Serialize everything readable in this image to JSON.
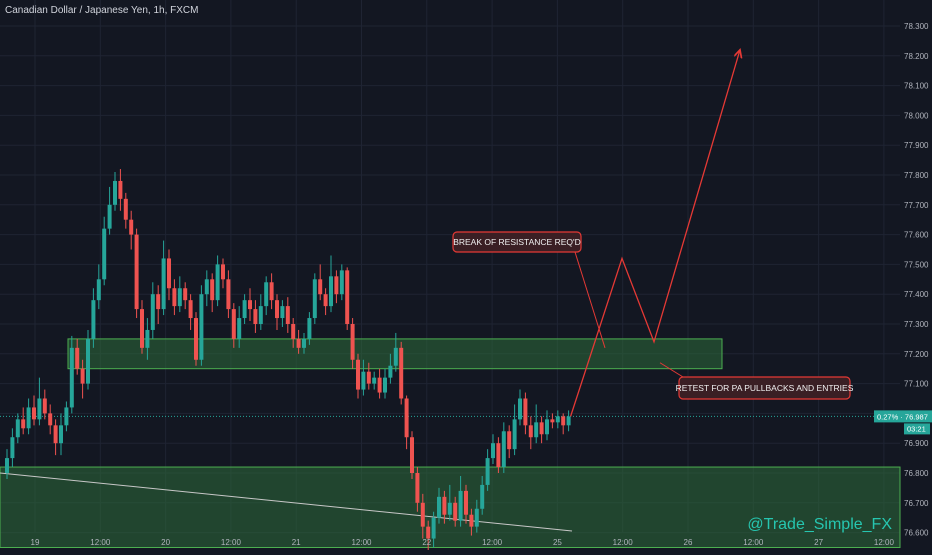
{
  "header": {
    "title": "Canadian Dollar / Japanese Yen, 1h, FXCM"
  },
  "watermark": "@Trade_Simple_FX",
  "price_tag": {
    "change": "0.27%",
    "price": "76.987",
    "timer": "03:21"
  },
  "colors": {
    "background": "#131722",
    "grid": "#1f2433",
    "bull": "#26a69a",
    "bear": "#ef5350",
    "zone_fill": "#2e6b3a",
    "zone_border": "#4caf50",
    "annotation": "#e53935",
    "axis_text": "#b2b5be",
    "trendline": "#c8c8c8"
  },
  "chart_data": {
    "type": "candlestick",
    "title": "Canadian Dollar / Japanese Yen, 1h, FXCM",
    "y_ticks": [
      "78.300",
      "78.200",
      "78.100",
      "78.000",
      "77.900",
      "77.800",
      "77.700",
      "77.600",
      "77.500",
      "77.400",
      "77.300",
      "77.200",
      "77.100",
      "77.000",
      "76.900",
      "76.800",
      "76.700",
      "76.600"
    ],
    "ylim": [
      76.53,
      78.36
    ],
    "x_ticks": [
      "19",
      "12:00",
      "20",
      "12:00",
      "21",
      "12:00",
      "22",
      "12:00",
      "25",
      "12:00",
      "26",
      "12:00",
      "27",
      "12:00"
    ],
    "candles": [
      {
        "o": 76.8,
        "c": 76.85,
        "h": 76.88,
        "l": 76.78
      },
      {
        "o": 76.85,
        "c": 76.92,
        "h": 76.95,
        "l": 76.82
      },
      {
        "o": 76.92,
        "c": 76.98,
        "h": 77.0,
        "l": 76.9
      },
      {
        "o": 76.98,
        "c": 76.95,
        "h": 77.02,
        "l": 76.93
      },
      {
        "o": 76.95,
        "c": 77.02,
        "h": 77.05,
        "l": 76.93
      },
      {
        "o": 77.02,
        "c": 76.98,
        "h": 77.06,
        "l": 76.96
      },
      {
        "o": 76.98,
        "c": 77.05,
        "h": 77.12,
        "l": 76.96
      },
      {
        "o": 77.05,
        "c": 77.0,
        "h": 77.08,
        "l": 76.98
      },
      {
        "o": 77.0,
        "c": 76.96,
        "h": 77.03,
        "l": 76.93
      },
      {
        "o": 76.96,
        "c": 76.9,
        "h": 76.98,
        "l": 76.86
      },
      {
        "o": 76.9,
        "c": 76.96,
        "h": 77.0,
        "l": 76.86
      },
      {
        "o": 76.96,
        "c": 77.02,
        "h": 77.04,
        "l": 76.94
      },
      {
        "o": 77.02,
        "c": 77.22,
        "h": 77.26,
        "l": 77.0
      },
      {
        "o": 77.22,
        "c": 77.15,
        "h": 77.25,
        "l": 77.13
      },
      {
        "o": 77.15,
        "c": 77.1,
        "h": 77.18,
        "l": 77.05
      },
      {
        "o": 77.1,
        "c": 77.25,
        "h": 77.28,
        "l": 77.08
      },
      {
        "o": 77.25,
        "c": 77.38,
        "h": 77.42,
        "l": 77.22
      },
      {
        "o": 77.38,
        "c": 77.45,
        "h": 77.5,
        "l": 77.35
      },
      {
        "o": 77.45,
        "c": 77.62,
        "h": 77.66,
        "l": 77.43
      },
      {
        "o": 77.62,
        "c": 77.7,
        "h": 77.76,
        "l": 77.6
      },
      {
        "o": 77.7,
        "c": 77.78,
        "h": 77.81,
        "l": 77.68
      },
      {
        "o": 77.78,
        "c": 77.72,
        "h": 77.82,
        "l": 77.68
      },
      {
        "o": 77.72,
        "c": 77.65,
        "h": 77.74,
        "l": 77.62
      },
      {
        "o": 77.65,
        "c": 77.6,
        "h": 77.68,
        "l": 77.55
      },
      {
        "o": 77.6,
        "c": 77.35,
        "h": 77.62,
        "l": 77.32
      },
      {
        "o": 77.35,
        "c": 77.22,
        "h": 77.38,
        "l": 77.2
      },
      {
        "o": 77.22,
        "c": 77.28,
        "h": 77.32,
        "l": 77.18
      },
      {
        "o": 77.28,
        "c": 77.4,
        "h": 77.44,
        "l": 77.25
      },
      {
        "o": 77.4,
        "c": 77.35,
        "h": 77.43,
        "l": 77.3
      },
      {
        "o": 77.35,
        "c": 77.52,
        "h": 77.58,
        "l": 77.33
      },
      {
        "o": 77.52,
        "c": 77.42,
        "h": 77.55,
        "l": 77.38
      },
      {
        "o": 77.42,
        "c": 77.36,
        "h": 77.45,
        "l": 77.33
      },
      {
        "o": 77.36,
        "c": 77.42,
        "h": 77.46,
        "l": 77.34
      },
      {
        "o": 77.42,
        "c": 77.38,
        "h": 77.44,
        "l": 77.35
      },
      {
        "o": 77.38,
        "c": 77.32,
        "h": 77.4,
        "l": 77.28
      },
      {
        "o": 77.32,
        "c": 77.18,
        "h": 77.34,
        "l": 77.16
      },
      {
        "o": 77.18,
        "c": 77.4,
        "h": 77.43,
        "l": 77.16
      },
      {
        "o": 77.4,
        "c": 77.45,
        "h": 77.48,
        "l": 77.36
      },
      {
        "o": 77.45,
        "c": 77.38,
        "h": 77.47,
        "l": 77.34
      },
      {
        "o": 77.38,
        "c": 77.5,
        "h": 77.53,
        "l": 77.36
      },
      {
        "o": 77.5,
        "c": 77.45,
        "h": 77.52,
        "l": 77.42
      },
      {
        "o": 77.45,
        "c": 77.35,
        "h": 77.48,
        "l": 77.32
      },
      {
        "o": 77.35,
        "c": 77.25,
        "h": 77.37,
        "l": 77.22
      },
      {
        "o": 77.25,
        "c": 77.32,
        "h": 77.36,
        "l": 77.22
      },
      {
        "o": 77.32,
        "c": 77.38,
        "h": 77.4,
        "l": 77.3
      },
      {
        "o": 77.38,
        "c": 77.35,
        "h": 77.42,
        "l": 77.31
      },
      {
        "o": 77.35,
        "c": 77.3,
        "h": 77.38,
        "l": 77.27
      },
      {
        "o": 77.3,
        "c": 77.36,
        "h": 77.4,
        "l": 77.28
      },
      {
        "o": 77.36,
        "c": 77.44,
        "h": 77.46,
        "l": 77.33
      },
      {
        "o": 77.44,
        "c": 77.38,
        "h": 77.47,
        "l": 77.35
      },
      {
        "o": 77.38,
        "c": 77.32,
        "h": 77.4,
        "l": 77.28
      },
      {
        "o": 77.32,
        "c": 77.36,
        "h": 77.38,
        "l": 77.29
      },
      {
        "o": 77.36,
        "c": 77.3,
        "h": 77.39,
        "l": 77.27
      },
      {
        "o": 77.3,
        "c": 77.25,
        "h": 77.32,
        "l": 77.22
      },
      {
        "o": 77.25,
        "c": 77.22,
        "h": 77.28,
        "l": 77.2
      },
      {
        "o": 77.22,
        "c": 77.25,
        "h": 77.27,
        "l": 77.2
      },
      {
        "o": 77.25,
        "c": 77.32,
        "h": 77.34,
        "l": 77.23
      },
      {
        "o": 77.32,
        "c": 77.45,
        "h": 77.47,
        "l": 77.3
      },
      {
        "o": 77.45,
        "c": 77.4,
        "h": 77.5,
        "l": 77.38
      },
      {
        "o": 77.4,
        "c": 77.36,
        "h": 77.42,
        "l": 77.33
      },
      {
        "o": 77.36,
        "c": 77.46,
        "h": 77.53,
        "l": 77.34
      },
      {
        "o": 77.46,
        "c": 77.4,
        "h": 77.48,
        "l": 77.37
      },
      {
        "o": 77.4,
        "c": 77.48,
        "h": 77.5,
        "l": 77.38
      },
      {
        "o": 77.48,
        "c": 77.3,
        "h": 77.49,
        "l": 77.28
      },
      {
        "o": 77.3,
        "c": 77.18,
        "h": 77.32,
        "l": 77.15
      },
      {
        "o": 77.18,
        "c": 77.08,
        "h": 77.2,
        "l": 77.05
      },
      {
        "o": 77.08,
        "c": 77.14,
        "h": 77.18,
        "l": 77.06
      },
      {
        "o": 77.14,
        "c": 77.1,
        "h": 77.17,
        "l": 77.08
      },
      {
        "o": 77.1,
        "c": 77.12,
        "h": 77.14,
        "l": 77.08
      },
      {
        "o": 77.12,
        "c": 77.07,
        "h": 77.15,
        "l": 77.05
      },
      {
        "o": 77.07,
        "c": 77.12,
        "h": 77.15,
        "l": 77.05
      },
      {
        "o": 77.12,
        "c": 77.16,
        "h": 77.2,
        "l": 77.1
      },
      {
        "o": 77.16,
        "c": 77.22,
        "h": 77.27,
        "l": 77.14
      },
      {
        "o": 77.22,
        "c": 77.05,
        "h": 77.24,
        "l": 77.03
      },
      {
        "o": 77.05,
        "c": 76.92,
        "h": 77.06,
        "l": 76.88
      },
      {
        "o": 76.92,
        "c": 76.8,
        "h": 76.94,
        "l": 76.78
      },
      {
        "o": 76.8,
        "c": 76.7,
        "h": 76.82,
        "l": 76.67
      },
      {
        "o": 76.7,
        "c": 76.62,
        "h": 76.73,
        "l": 76.58
      },
      {
        "o": 76.62,
        "c": 76.58,
        "h": 76.64,
        "l": 76.54
      },
      {
        "o": 76.58,
        "c": 76.65,
        "h": 76.67,
        "l": 76.55
      },
      {
        "o": 76.65,
        "c": 76.72,
        "h": 76.75,
        "l": 76.63
      },
      {
        "o": 76.72,
        "c": 76.66,
        "h": 76.74,
        "l": 76.63
      },
      {
        "o": 76.66,
        "c": 76.7,
        "h": 76.76,
        "l": 76.64
      },
      {
        "o": 76.7,
        "c": 76.64,
        "h": 76.72,
        "l": 76.62
      },
      {
        "o": 76.64,
        "c": 76.74,
        "h": 76.79,
        "l": 76.62
      },
      {
        "o": 76.74,
        "c": 76.66,
        "h": 76.76,
        "l": 76.63
      },
      {
        "o": 76.66,
        "c": 76.62,
        "h": 76.68,
        "l": 76.59
      },
      {
        "o": 76.62,
        "c": 76.68,
        "h": 76.71,
        "l": 76.6
      },
      {
        "o": 76.68,
        "c": 76.76,
        "h": 76.79,
        "l": 76.66
      },
      {
        "o": 76.76,
        "c": 76.85,
        "h": 76.88,
        "l": 76.74
      },
      {
        "o": 76.85,
        "c": 76.9,
        "h": 76.93,
        "l": 76.83
      },
      {
        "o": 76.9,
        "c": 76.82,
        "h": 76.92,
        "l": 76.8
      },
      {
        "o": 76.82,
        "c": 76.94,
        "h": 76.97,
        "l": 76.8
      },
      {
        "o": 76.94,
        "c": 76.88,
        "h": 76.96,
        "l": 76.85
      },
      {
        "o": 76.88,
        "c": 76.98,
        "h": 77.03,
        "l": 76.86
      },
      {
        "o": 76.98,
        "c": 77.05,
        "h": 77.08,
        "l": 76.96
      },
      {
        "o": 77.05,
        "c": 76.96,
        "h": 77.07,
        "l": 76.93
      },
      {
        "o": 76.96,
        "c": 76.92,
        "h": 76.99,
        "l": 76.88
      },
      {
        "o": 76.92,
        "c": 76.97,
        "h": 77.03,
        "l": 76.9
      },
      {
        "o": 76.97,
        "c": 76.93,
        "h": 76.99,
        "l": 76.9
      },
      {
        "o": 76.93,
        "c": 76.98,
        "h": 77.01,
        "l": 76.91
      },
      {
        "o": 76.98,
        "c": 76.97,
        "h": 77.0,
        "l": 76.95
      },
      {
        "o": 76.97,
        "c": 76.99,
        "h": 77.01,
        "l": 76.95
      },
      {
        "o": 76.99,
        "c": 76.96,
        "h": 77.0,
        "l": 76.93
      },
      {
        "o": 76.96,
        "c": 76.99,
        "h": 77.01,
        "l": 76.94
      }
    ],
    "zones": [
      {
        "name": "resistance",
        "from": 77.15,
        "to": 77.25
      },
      {
        "name": "support",
        "from": 76.55,
        "to": 76.82
      }
    ],
    "annotations": [
      {
        "text": "BREAK OF RESISTANCE REQ'D"
      },
      {
        "text": "RETEST FOR PA PULLBACKS AND ENTRIES"
      }
    ],
    "projection": [
      76.99,
      77.52,
      77.24,
      78.22
    ]
  }
}
